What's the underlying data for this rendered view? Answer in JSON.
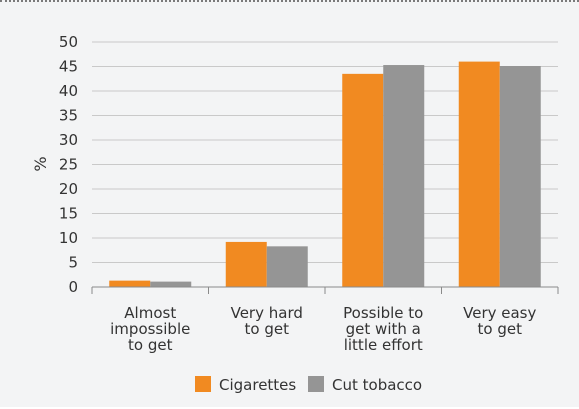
{
  "chart_data": {
    "type": "bar",
    "title": "",
    "xlabel": "",
    "ylabel": "%",
    "ylim": [
      0,
      50
    ],
    "yticks": [
      0,
      5,
      10,
      15,
      20,
      25,
      30,
      35,
      40,
      45,
      50
    ],
    "grid": true,
    "legend_position": "bottom",
    "categories": [
      [
        "Almost",
        "impossible",
        "to get"
      ],
      [
        "Very hard",
        "to get"
      ],
      [
        "Possible to",
        "get with a",
        "little effort"
      ],
      [
        "Very easy",
        "to get"
      ]
    ],
    "series": [
      {
        "name": "Cigarettes",
        "color": "#f18a21",
        "values": [
          1.3,
          9.2,
          43.5,
          46.0
        ]
      },
      {
        "name": "Cut tobacco",
        "color": "#959595",
        "values": [
          1.1,
          8.3,
          45.3,
          45.1
        ]
      }
    ]
  }
}
